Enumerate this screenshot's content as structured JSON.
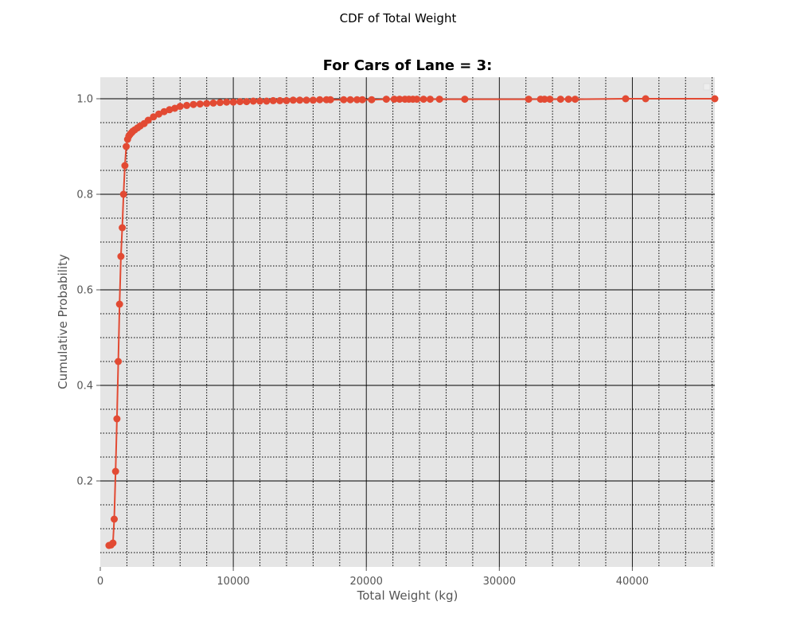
{
  "figure": {
    "suptitle": "CDF of Total Weight",
    "title": "For Cars of Lane = 3:"
  },
  "colors": {
    "series": "#E24A33",
    "plot_background": "#E5E5E5",
    "major_grid": "#000000",
    "minor_grid": "#000000"
  },
  "chart_data": {
    "type": "line",
    "title": "For Cars of Lane = 3:",
    "xlabel": "Total Weight (kg)",
    "ylabel": "Cumulative Probability",
    "xlim": [
      0,
      46200
    ],
    "ylim": [
      0.02,
      1.045
    ],
    "x_ticks": [
      0,
      10000,
      20000,
      30000,
      40000
    ],
    "x_tick_labels": [
      "0",
      "10000",
      "20000",
      "30000",
      "40000"
    ],
    "y_ticks": [
      0.2,
      0.4,
      0.6,
      0.8,
      1.0
    ],
    "y_tick_labels": [
      "0.2",
      "0.4",
      "0.6",
      "0.8",
      "1.0"
    ],
    "grid": true,
    "minor_grid": true,
    "marker": "circle",
    "series": [
      {
        "x": [
          650,
          800,
          950,
          1050,
          1150,
          1250,
          1350,
          1450,
          1550,
          1650,
          1750,
          1850,
          1950,
          2050,
          2150,
          2250,
          2350,
          2450,
          2600,
          2800,
          3000,
          3300,
          3600,
          4000,
          4400,
          4800,
          5200,
          5600,
          6000,
          6500,
          7000,
          7500,
          8000,
          8500,
          9000,
          9500,
          10000,
          10500,
          11000,
          11500,
          12000,
          12500,
          13000,
          13500,
          14000,
          14500,
          15000,
          15500,
          16000,
          16500,
          17000,
          17300,
          18300,
          18800,
          19300,
          19700,
          20400,
          21500,
          22100,
          22500,
          22900,
          23200,
          23500,
          23800,
          24300,
          24800,
          25500,
          27400,
          32200,
          33100,
          33400,
          33800,
          34600,
          35200,
          35700,
          39500,
          41000,
          46200
        ],
        "y": [
          0.065,
          0.066,
          0.07,
          0.12,
          0.22,
          0.33,
          0.45,
          0.57,
          0.67,
          0.73,
          0.8,
          0.86,
          0.9,
          0.915,
          0.922,
          0.926,
          0.929,
          0.932,
          0.935,
          0.939,
          0.943,
          0.948,
          0.955,
          0.962,
          0.968,
          0.973,
          0.977,
          0.98,
          0.984,
          0.986,
          0.988,
          0.989,
          0.99,
          0.991,
          0.992,
          0.993,
          0.993,
          0.994,
          0.994,
          0.995,
          0.995,
          0.995,
          0.996,
          0.996,
          0.996,
          0.997,
          0.997,
          0.997,
          0.997,
          0.998,
          0.998,
          0.998,
          0.998,
          0.998,
          0.998,
          0.998,
          0.998,
          0.999,
          0.999,
          0.999,
          0.999,
          0.999,
          0.999,
          0.999,
          0.999,
          0.999,
          0.999,
          0.999,
          0.999,
          0.999,
          0.999,
          0.999,
          0.999,
          0.999,
          0.999,
          1.0,
          1.0,
          1.0
        ]
      }
    ]
  }
}
